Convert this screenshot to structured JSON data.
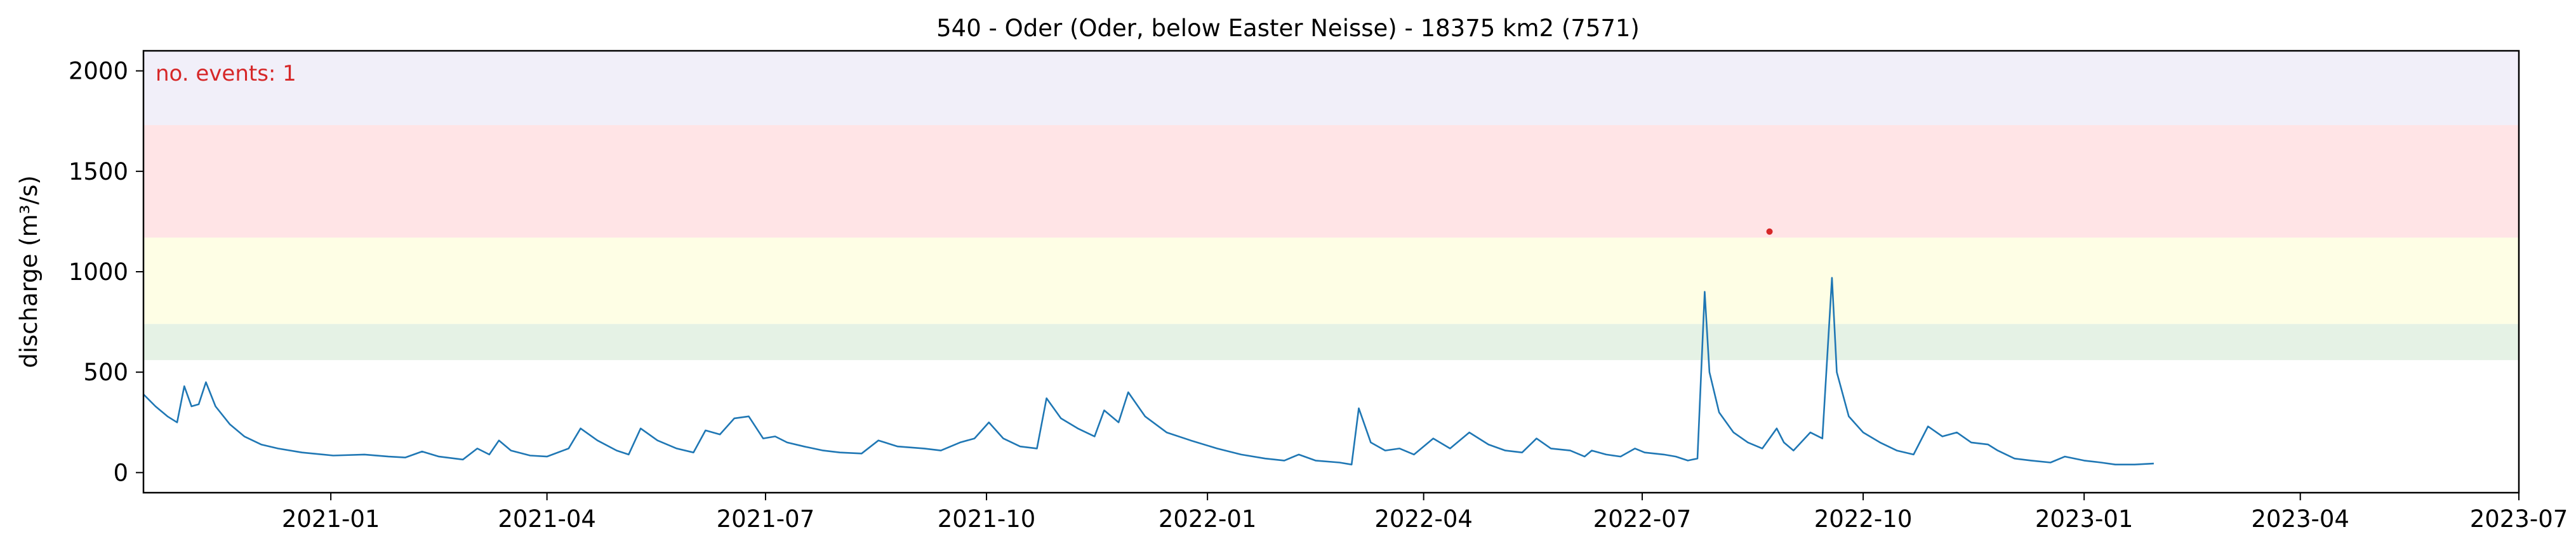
{
  "chart_data": {
    "type": "line",
    "title": "540 - Oder (Oder, below Easter Neisse) - 18375 km2 (7571)",
    "xlabel": "",
    "ylabel": "discharge (m³/s)",
    "xlim": [
      "2020-10-15",
      "2023-07-01"
    ],
    "ylim": [
      -100,
      2100
    ],
    "x_ticks": [
      "2021-01",
      "2021-04",
      "2021-07",
      "2021-10",
      "2022-01",
      "2022-04",
      "2022-07",
      "2022-10",
      "2023-01",
      "2023-04",
      "2023-07"
    ],
    "y_ticks": [
      0,
      500,
      1000,
      1500,
      2000
    ],
    "threshold_bands": [
      {
        "from": 560,
        "to": 740,
        "color": "#e5f2e5"
      },
      {
        "from": 740,
        "to": 1170,
        "color": "#fefee5"
      },
      {
        "from": 1170,
        "to": 1730,
        "color": "#ffe4e6"
      },
      {
        "from": 1730,
        "to": 2100,
        "color": "#f1eff9"
      }
    ],
    "annotation": {
      "text": "no. events: 1",
      "color": "#d62728"
    },
    "event_points": [
      {
        "x": "2022-08-23",
        "y": 1200
      }
    ],
    "grid": false,
    "series": [
      {
        "color": "#1f77b4",
        "points": [
          [
            "2020-10-15",
            390
          ],
          [
            "2020-10-20",
            330
          ],
          [
            "2020-10-25",
            280
          ],
          [
            "2020-10-29",
            250
          ],
          [
            "2020-11-01",
            430
          ],
          [
            "2020-11-04",
            330
          ],
          [
            "2020-11-07",
            340
          ],
          [
            "2020-11-10",
            450
          ],
          [
            "2020-11-14",
            330
          ],
          [
            "2020-11-20",
            240
          ],
          [
            "2020-11-26",
            180
          ],
          [
            "2020-12-03",
            140
          ],
          [
            "2020-12-10",
            120
          ],
          [
            "2020-12-20",
            100
          ],
          [
            "2021-01-02",
            85
          ],
          [
            "2021-01-15",
            90
          ],
          [
            "2021-01-25",
            80
          ],
          [
            "2021-02-01",
            75
          ],
          [
            "2021-02-08",
            105
          ],
          [
            "2021-02-15",
            80
          ],
          [
            "2021-02-25",
            65
          ],
          [
            "2021-03-03",
            120
          ],
          [
            "2021-03-08",
            90
          ],
          [
            "2021-03-12",
            160
          ],
          [
            "2021-03-17",
            110
          ],
          [
            "2021-03-25",
            85
          ],
          [
            "2021-04-01",
            80
          ],
          [
            "2021-04-10",
            120
          ],
          [
            "2021-04-15",
            220
          ],
          [
            "2021-04-22",
            160
          ],
          [
            "2021-04-30",
            110
          ],
          [
            "2021-05-05",
            90
          ],
          [
            "2021-05-10",
            220
          ],
          [
            "2021-05-17",
            160
          ],
          [
            "2021-05-25",
            120
          ],
          [
            "2021-06-01",
            100
          ],
          [
            "2021-06-06",
            210
          ],
          [
            "2021-06-12",
            190
          ],
          [
            "2021-06-18",
            270
          ],
          [
            "2021-06-24",
            280
          ],
          [
            "2021-06-30",
            170
          ],
          [
            "2021-07-05",
            180
          ],
          [
            "2021-07-10",
            150
          ],
          [
            "2021-07-17",
            130
          ],
          [
            "2021-07-25",
            110
          ],
          [
            "2021-08-01",
            100
          ],
          [
            "2021-08-10",
            95
          ],
          [
            "2021-08-17",
            160
          ],
          [
            "2021-08-25",
            130
          ],
          [
            "2021-09-05",
            120
          ],
          [
            "2021-09-12",
            110
          ],
          [
            "2021-09-20",
            150
          ],
          [
            "2021-09-26",
            170
          ],
          [
            "2021-10-02",
            250
          ],
          [
            "2021-10-08",
            170
          ],
          [
            "2021-10-15",
            130
          ],
          [
            "2021-10-22",
            120
          ],
          [
            "2021-10-26",
            370
          ],
          [
            "2021-11-01",
            270
          ],
          [
            "2021-11-08",
            220
          ],
          [
            "2021-11-15",
            180
          ],
          [
            "2021-11-19",
            310
          ],
          [
            "2021-11-25",
            250
          ],
          [
            "2021-11-29",
            400
          ],
          [
            "2021-12-06",
            280
          ],
          [
            "2021-12-15",
            200
          ],
          [
            "2021-12-25",
            160
          ],
          [
            "2022-01-05",
            120
          ],
          [
            "2022-01-15",
            90
          ],
          [
            "2022-01-25",
            70
          ],
          [
            "2022-02-02",
            60
          ],
          [
            "2022-02-08",
            90
          ],
          [
            "2022-02-15",
            60
          ],
          [
            "2022-02-25",
            50
          ],
          [
            "2022-03-02",
            40
          ],
          [
            "2022-03-05",
            320
          ],
          [
            "2022-03-10",
            150
          ],
          [
            "2022-03-16",
            110
          ],
          [
            "2022-03-22",
            120
          ],
          [
            "2022-03-28",
            90
          ],
          [
            "2022-04-05",
            170
          ],
          [
            "2022-04-12",
            120
          ],
          [
            "2022-04-20",
            200
          ],
          [
            "2022-04-28",
            140
          ],
          [
            "2022-05-05",
            110
          ],
          [
            "2022-05-12",
            100
          ],
          [
            "2022-05-18",
            170
          ],
          [
            "2022-05-24",
            120
          ],
          [
            "2022-06-01",
            110
          ],
          [
            "2022-06-07",
            80
          ],
          [
            "2022-06-10",
            110
          ],
          [
            "2022-06-16",
            90
          ],
          [
            "2022-06-22",
            80
          ],
          [
            "2022-06-28",
            120
          ],
          [
            "2022-07-02",
            100
          ],
          [
            "2022-07-10",
            90
          ],
          [
            "2022-07-15",
            80
          ],
          [
            "2022-07-20",
            60
          ],
          [
            "2022-07-24",
            70
          ],
          [
            "2022-07-27",
            900
          ],
          [
            "2022-07-29",
            500
          ],
          [
            "2022-08-02",
            300
          ],
          [
            "2022-08-08",
            200
          ],
          [
            "2022-08-14",
            150
          ],
          [
            "2022-08-20",
            120
          ],
          [
            "2022-08-26",
            220
          ],
          [
            "2022-08-29",
            150
          ],
          [
            "2022-09-02",
            110
          ],
          [
            "2022-09-09",
            200
          ],
          [
            "2022-09-14",
            170
          ],
          [
            "2022-09-18",
            970
          ],
          [
            "2022-09-20",
            500
          ],
          [
            "2022-09-25",
            280
          ],
          [
            "2022-10-01",
            200
          ],
          [
            "2022-10-08",
            150
          ],
          [
            "2022-10-15",
            110
          ],
          [
            "2022-10-22",
            90
          ],
          [
            "2022-10-28",
            230
          ],
          [
            "2022-11-03",
            180
          ],
          [
            "2022-11-09",
            200
          ],
          [
            "2022-11-15",
            150
          ],
          [
            "2022-11-22",
            140
          ],
          [
            "2022-11-26",
            110
          ],
          [
            "2022-12-03",
            70
          ],
          [
            "2022-12-10",
            60
          ],
          [
            "2022-12-18",
            50
          ],
          [
            "2022-12-24",
            80
          ],
          [
            "2023-01-01",
            60
          ],
          [
            "2023-01-08",
            50
          ],
          [
            "2023-01-14",
            40
          ],
          [
            "2023-01-22",
            40
          ],
          [
            "2023-01-30",
            45
          ]
        ]
      }
    ]
  }
}
